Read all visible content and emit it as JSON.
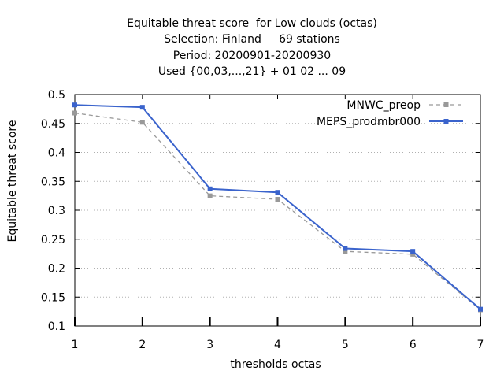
{
  "chart_data": {
    "type": "line",
    "title_lines": [
      "Equitable threat score  for Low clouds (octas)",
      "Selection: Finland     69 stations",
      "Period: 20200901-20200930",
      "Used {00,03,...,21} + 01 02 ... 09"
    ],
    "xlabel": "thresholds octas",
    "ylabel": "Equitable threat score",
    "x": [
      1,
      2,
      3,
      4,
      5,
      6,
      7
    ],
    "x_ticks": [
      "1",
      "2",
      "3",
      "4",
      "5",
      "6",
      "7"
    ],
    "xlim": [
      1,
      7
    ],
    "ylim": [
      0.1,
      0.5
    ],
    "y_ticks": [
      "0.1",
      "0.15",
      "0.2",
      "0.25",
      "0.3",
      "0.35",
      "0.4",
      "0.45",
      "0.5"
    ],
    "grid": true,
    "legend_position": "top-right",
    "series": [
      {
        "name": "MNWC_preop",
        "color": "#999999",
        "style": "dashed",
        "values": [
          0.468,
          0.452,
          0.325,
          0.319,
          0.229,
          0.224,
          0.128
        ]
      },
      {
        "name": "MEPS_prodmbr000",
        "color": "#3a63cc",
        "style": "solid",
        "values": [
          0.482,
          0.478,
          0.337,
          0.331,
          0.234,
          0.229,
          0.129
        ]
      }
    ]
  }
}
